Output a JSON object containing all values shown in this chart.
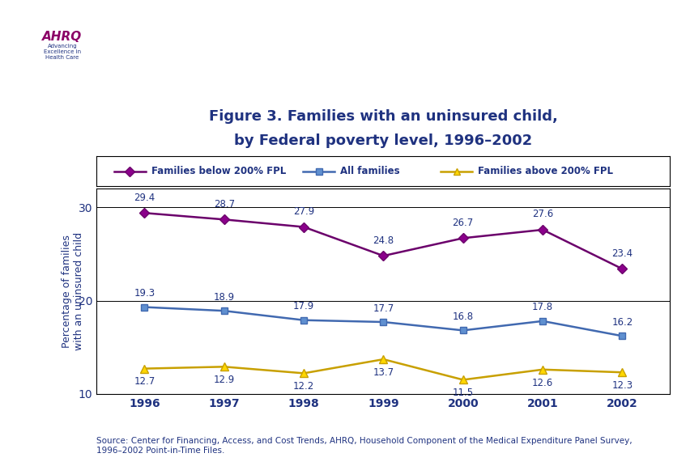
{
  "title_line1": "Figure 3. Families with an uninsured child,",
  "title_line2": "by Federal poverty level, 1996–2002",
  "years": [
    1996,
    1997,
    1998,
    1999,
    2000,
    2001,
    2002
  ],
  "series_below200": {
    "label": "Families below 200% FPL",
    "values": [
      29.4,
      28.7,
      27.9,
      24.8,
      26.7,
      27.6,
      23.4
    ],
    "color": "#6B006B",
    "marker": "D",
    "markersize": 6,
    "linewidth": 1.8,
    "markerfacecolor": "#8B008B"
  },
  "series_all": {
    "label": "All families",
    "values": [
      19.3,
      18.9,
      17.9,
      17.7,
      16.8,
      17.8,
      16.2
    ],
    "color": "#4169B0",
    "marker": "s",
    "markersize": 6,
    "linewidth": 1.8,
    "markerfacecolor": "#6090D0"
  },
  "series_above200": {
    "label": "Families above 200% FPL",
    "values": [
      12.7,
      12.9,
      12.2,
      13.7,
      11.5,
      12.6,
      12.3
    ],
    "color": "#C8A000",
    "marker": "^",
    "markersize": 7,
    "linewidth": 1.8,
    "markerfacecolor": "#FFD700"
  },
  "ylabel": "Percentage of families\nwith an uninsured child",
  "ylim": [
    10,
    32
  ],
  "yticks": [
    10,
    20,
    30
  ],
  "fig_bg": "#FFFFFF",
  "plot_bg": "#FFFFFF",
  "outer_border_color": "#00008B",
  "header_bar_color": "#00008B",
  "title_color": "#1F3280",
  "axis_label_color": "#1F3280",
  "tick_label_color": "#1F3280",
  "annotation_color": "#1F3280",
  "source_text": "Source: Center for Financing, Access, and Cost Trends, AHRQ, Household Component of the Medical Expenditure Panel Survey,\n1996–2002 Point-in-Time Files.",
  "source_color": "#1F3280",
  "annotation_fontsize": 8.5,
  "title_fontsize": 13,
  "tick_fontsize": 10,
  "ylabel_fontsize": 9,
  "legend_fontsize": 8.5,
  "source_fontsize": 7.5,
  "logo_bg": "#5BB8D4",
  "logo_text_color": "#FFFFFF"
}
